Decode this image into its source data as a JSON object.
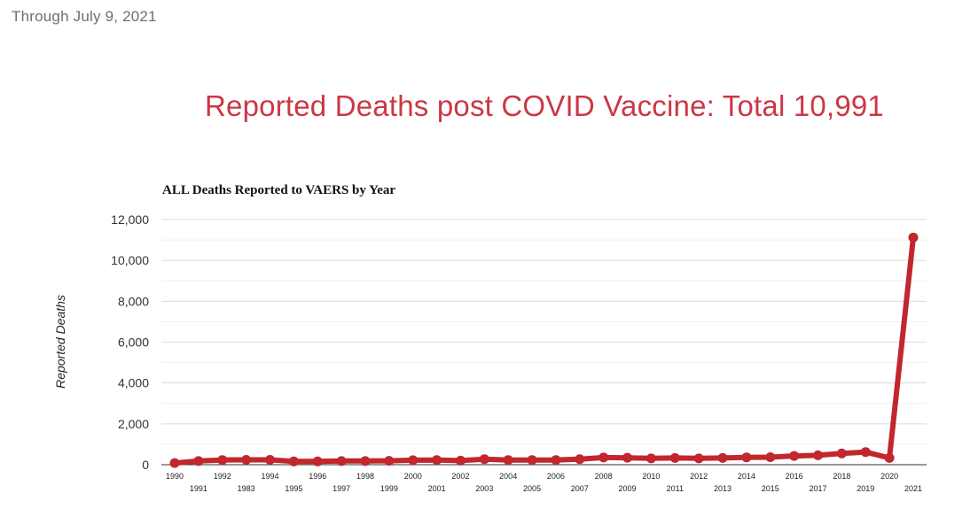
{
  "header": {
    "as_of": "Through July 9, 2021",
    "headline": "Reported Deaths post COVID Vaccine: Total 10,991"
  },
  "colors": {
    "series": "#c1272d",
    "headline": "#cc3745",
    "grid": "#dcdcdc"
  },
  "chart_data": {
    "type": "line",
    "title": "ALL Deaths Reported to VAERS by Year",
    "xlabel": "",
    "ylabel": "Reported Deaths",
    "ylim": [
      0,
      12000
    ],
    "yticks": [
      0,
      2000,
      4000,
      6000,
      8000,
      10000,
      12000
    ],
    "ytick_labels": [
      "0",
      "2,000",
      "4,000",
      "6,000",
      "8,000",
      "10,000",
      "12,000"
    ],
    "grid": true,
    "categories": [
      "1990",
      "1991",
      "1992",
      "1983",
      "1994",
      "1995",
      "1996",
      "1997",
      "1998",
      "1999",
      "2000",
      "2001",
      "2002",
      "2003",
      "2004",
      "2005",
      "2006",
      "2007",
      "2008",
      "2009",
      "2010",
      "2011",
      "2012",
      "2013",
      "2014",
      "2015",
      "2016",
      "2017",
      "2018",
      "2019",
      "2020",
      "2021"
    ],
    "series": [
      {
        "name": "Reported Deaths",
        "values": [
          80,
          180,
          230,
          240,
          240,
          160,
          160,
          180,
          180,
          190,
          220,
          230,
          200,
          270,
          230,
          230,
          230,
          270,
          350,
          340,
          310,
          330,
          310,
          330,
          360,
          370,
          430,
          460,
          550,
          620,
          330,
          11120
        ]
      }
    ]
  }
}
